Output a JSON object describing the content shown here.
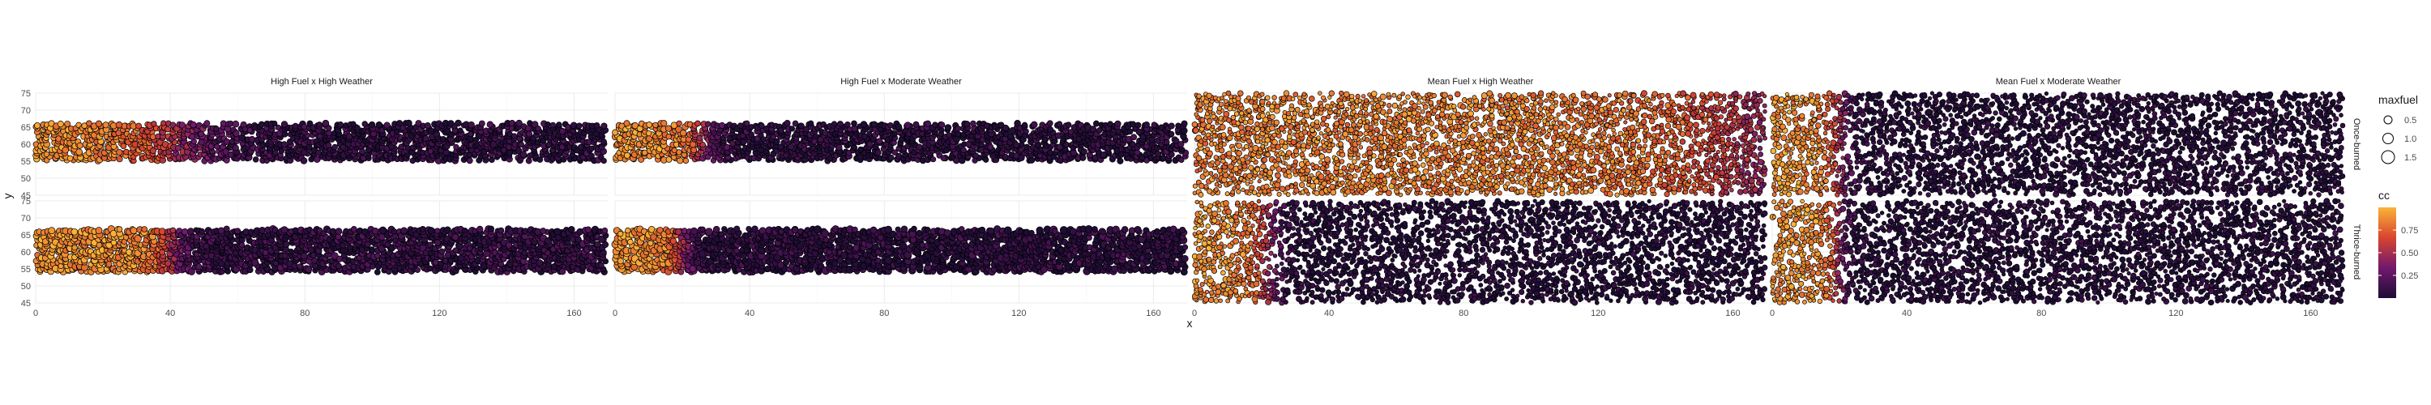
{
  "chart_data": {
    "type": "scatter",
    "xlabel": "x",
    "ylabel": "y",
    "xlim": [
      0,
      170
    ],
    "ylim": [
      45,
      75
    ],
    "x_ticks": [
      0,
      40,
      80,
      120,
      160
    ],
    "y_ticks": [
      45,
      50,
      55,
      60,
      65,
      70,
      75
    ],
    "columns": [
      "High Fuel x High Weather",
      "High Fuel x Moderate Weather",
      "Mean Fuel x High Weather",
      "Mean Fuel x Moderate Weather"
    ],
    "rows": [
      "Once-burned",
      "Thrice-burned"
    ],
    "grid": true,
    "legend_position": "right",
    "legend": {
      "size": {
        "title": "maxfuel",
        "values": [
          0.5,
          1.0,
          1.5
        ],
        "labels": [
          "0.5",
          "1.0",
          "1.5"
        ]
      },
      "color": {
        "title": "cc",
        "ticks": [
          0.25,
          0.5,
          0.75
        ],
        "labels": [
          "0.25",
          "0.50",
          "0.75"
        ],
        "range": [
          0,
          1
        ],
        "palette": [
          "#1e0d35",
          "#71196e",
          "#d8452e",
          "#fbb338"
        ]
      }
    },
    "panels": [
      {
        "column": 0,
        "row": 0,
        "x_range": [
          0,
          170
        ],
        "y_range": [
          55,
          66
        ],
        "burn_front_x": 42,
        "transition": 18,
        "max_cc": 0.9,
        "background_cc": 0.08,
        "density": 0.85,
        "size_range": [
          0.9,
          1.1
        ]
      },
      {
        "column": 0,
        "row": 1,
        "x_range": [
          0,
          170
        ],
        "y_range": [
          54,
          67
        ],
        "burn_front_x": 40,
        "transition": 6,
        "max_cc": 0.9,
        "background_cc": 0.1,
        "density": 0.9,
        "size_range": [
          0.9,
          1.2
        ]
      },
      {
        "column": 1,
        "row": 0,
        "x_range": [
          0,
          170
        ],
        "y_range": [
          55,
          66
        ],
        "burn_front_x": 26,
        "transition": 7,
        "max_cc": 0.9,
        "background_cc": 0.06,
        "density": 0.85,
        "size_range": [
          0.9,
          1.1
        ]
      },
      {
        "column": 1,
        "row": 1,
        "x_range": [
          0,
          170
        ],
        "y_range": [
          54,
          67
        ],
        "burn_front_x": 20,
        "transition": 5,
        "max_cc": 0.9,
        "background_cc": 0.06,
        "density": 0.85,
        "size_range": [
          0.9,
          1.3
        ]
      },
      {
        "column": 2,
        "row": 0,
        "x_range": [
          0,
          170
        ],
        "y_range": [
          45,
          75
        ],
        "burn_front_x": 165,
        "transition": 30,
        "max_cc": 0.85,
        "background_cc": 0.12,
        "density": 0.65,
        "size_range": [
          0.6,
          1.0
        ]
      },
      {
        "column": 2,
        "row": 1,
        "x_range": [
          0,
          170
        ],
        "y_range": [
          45,
          75
        ],
        "burn_front_x": 22,
        "transition": 6,
        "max_cc": 0.9,
        "background_cc": 0.02,
        "density": 0.6,
        "size_range": [
          0.6,
          1.0
        ]
      },
      {
        "column": 3,
        "row": 0,
        "x_range": [
          0,
          170
        ],
        "y_range": [
          45,
          75
        ],
        "burn_front_x": 20,
        "transition": 5,
        "max_cc": 0.9,
        "background_cc": 0.03,
        "density": 0.6,
        "size_range": [
          0.6,
          1.0
        ]
      },
      {
        "column": 3,
        "row": 1,
        "x_range": [
          0,
          170
        ],
        "y_range": [
          45,
          75
        ],
        "burn_front_x": 20,
        "transition": 4,
        "max_cc": 0.9,
        "background_cc": 0.03,
        "density": 0.6,
        "size_range": [
          0.6,
          1.0
        ]
      }
    ]
  }
}
